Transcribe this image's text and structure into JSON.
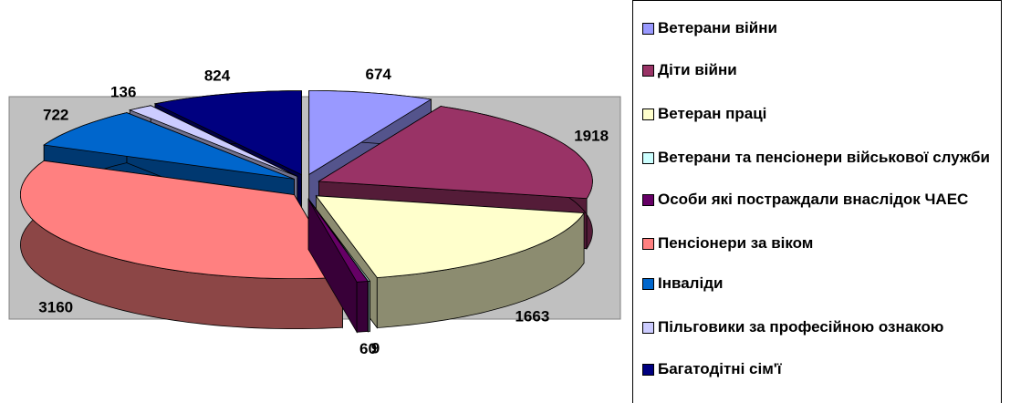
{
  "chart_data": {
    "type": "pie",
    "categories": [
      "Ветерани війни",
      "Діти війни",
      "Ветеран праці",
      "Ветерани та пенсіонери військової служби",
      "Особи які постраждали внаслідок ЧАЕС",
      "Пенсіонери за віком",
      "Інваліди",
      "Пільговики за професійною ознакою",
      "Багатодітні сім'ї"
    ],
    "values": [
      674,
      1918,
      1663,
      9,
      60,
      3160,
      722,
      136,
      824
    ],
    "colors": [
      "#9999ff",
      "#993366",
      "#ffffcc",
      "#ccffff",
      "#660066",
      "#ff8080",
      "#0066cc",
      "#ccccff",
      "#000080"
    ],
    "legend": "right"
  }
}
